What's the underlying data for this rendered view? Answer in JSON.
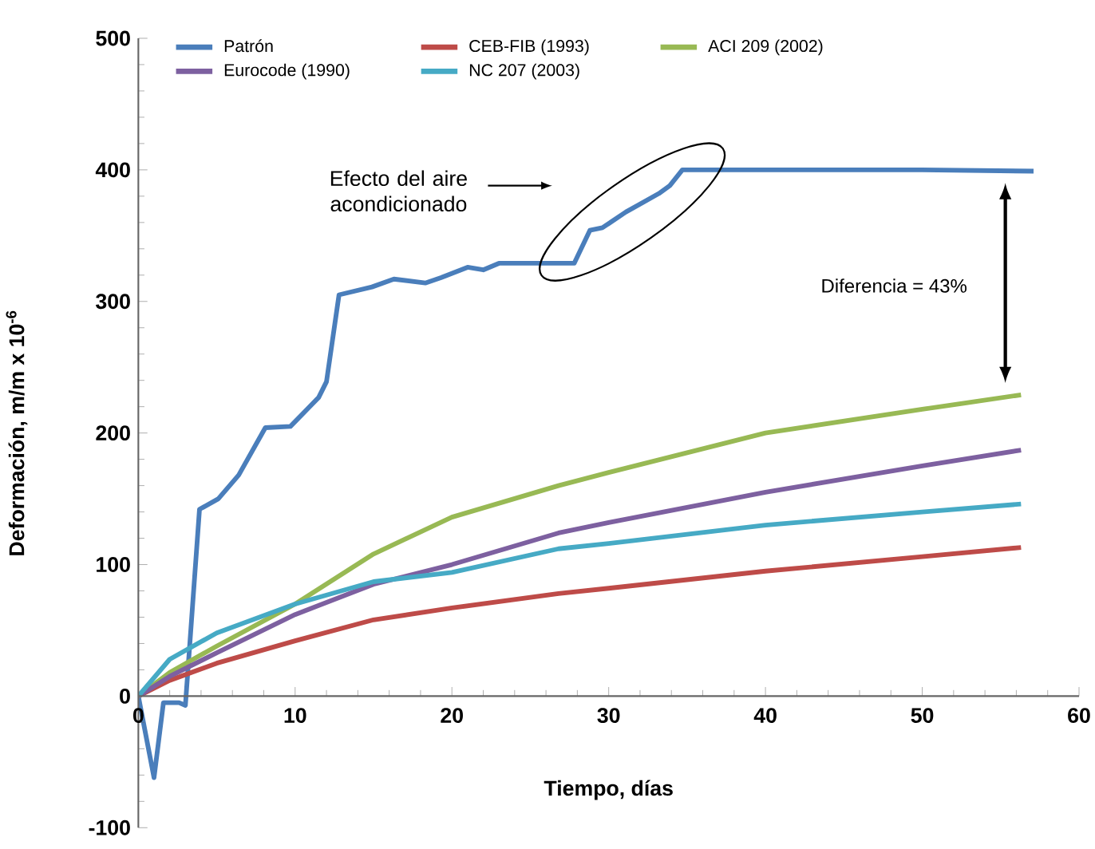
{
  "chart_data": {
    "type": "line",
    "xlabel": "Tiempo, días",
    "ylabel": "Deformación, m/m x 10$^{-6}$",
    "xlim": [
      0,
      60
    ],
    "xticks": [
      0,
      10,
      20,
      30,
      40,
      50,
      60
    ],
    "ylim": [
      -100,
      500
    ],
    "yticks": [
      -100,
      0,
      100,
      200,
      300,
      400,
      500
    ],
    "grid": false,
    "legend": "top",
    "marker": "none",
    "line_style": "solid",
    "annotations": [
      "Efecto del aire acondicionado",
      "Diferencia = 43%"
    ],
    "series": [
      {
        "name": "Patrón",
        "color": "#4a7ebb",
        "x": [
          0,
          1,
          1.6,
          2.6,
          3,
          3.9,
          5.1,
          6.4,
          8.1,
          9.7,
          11.5,
          12,
          12.8,
          14.9,
          16.3,
          18.3,
          19.3,
          21,
          22,
          23,
          27.8,
          28.8,
          29.6,
          31.1,
          33.2,
          33.9,
          34.7,
          40,
          50,
          57.1
        ],
        "values": [
          0,
          -62,
          -5,
          -5,
          -7,
          142,
          150,
          168,
          204,
          205,
          227,
          239,
          305,
          311,
          317,
          314,
          318,
          326,
          324,
          329,
          329,
          354,
          356,
          368,
          382,
          388,
          400,
          400,
          400,
          399
        ]
      },
      {
        "name": "CEB-FIB (1993)",
        "color": "#be4b48",
        "x": [
          0,
          2,
          5,
          10,
          15,
          20,
          26.8,
          30,
          40,
          50,
          56.3
        ],
        "values": [
          0,
          12,
          25,
          42,
          58,
          67,
          78,
          82,
          95,
          106,
          113
        ]
      },
      {
        "name": "ACI 209 (2002)",
        "color": "#98b954",
        "x": [
          0,
          2,
          5,
          10,
          15,
          20,
          26.8,
          30,
          40,
          50,
          56.3
        ],
        "values": [
          0,
          18,
          38,
          70,
          108,
          136,
          160,
          170,
          200,
          218,
          229
        ]
      },
      {
        "name": "Eurocode (1990)",
        "color": "#7d60a0",
        "x": [
          0,
          2,
          5,
          10,
          15,
          20,
          26.8,
          30,
          40,
          50,
          56.3
        ],
        "values": [
          0,
          15,
          33,
          62,
          85,
          100,
          124,
          132,
          155,
          175,
          187
        ]
      },
      {
        "name": "NC 207 (2003)",
        "color": "#46aac5",
        "x": [
          0,
          2,
          5,
          10,
          15,
          20,
          26.8,
          30,
          40,
          50,
          56.3
        ],
        "values": [
          0,
          28,
          48,
          70,
          87,
          94,
          112,
          116,
          130,
          140,
          146
        ]
      }
    ]
  }
}
